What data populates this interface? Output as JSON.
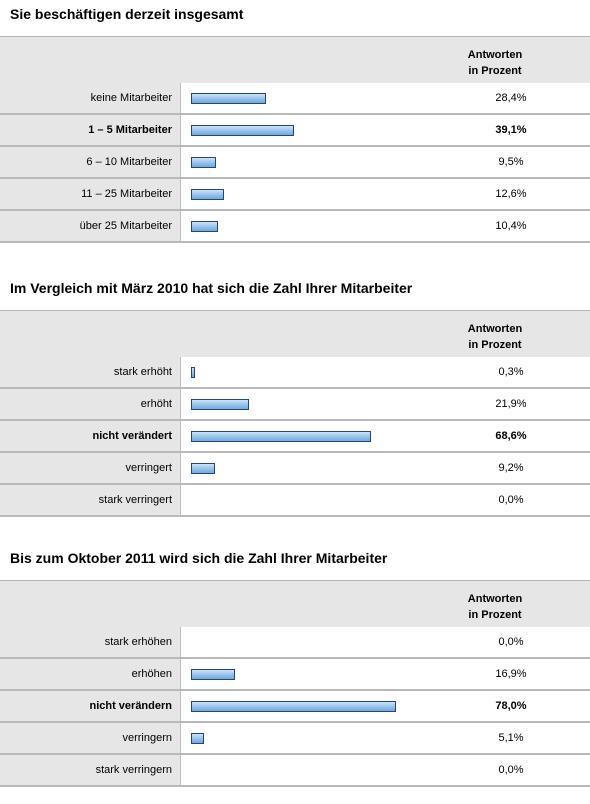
{
  "header": {
    "line1": "Antworten",
    "line2": "in Prozent"
  },
  "chart_data": [
    {
      "type": "bar",
      "title": "Sie beschäftigen derzeit insgesamt",
      "categories": [
        "keine Mitarbeiter",
        "1 – 5 Mitarbeiter",
        "6 – 10 Mitarbeiter",
        "11 – 25 Mitarbeiter",
        "über 25 Mitarbeiter"
      ],
      "values": [
        28.4,
        39.1,
        9.5,
        12.6,
        10.4
      ],
      "value_labels": [
        "28,4%",
        "39,1%",
        "9,5%",
        "12,6%",
        "10,4%"
      ],
      "highlight_index": 1,
      "xlim": [
        0,
        100
      ]
    },
    {
      "type": "bar",
      "title": "Im Vergleich mit März 2010 hat sich die Zahl Ihrer Mitarbeiter",
      "categories": [
        "stark erhöht",
        "erhöht",
        "nicht verändert",
        "verringert",
        "stark verringert"
      ],
      "values": [
        0.3,
        21.9,
        68.6,
        9.2,
        0.0
      ],
      "value_labels": [
        "0,3%",
        "21,9%",
        "68,6%",
        "9,2%",
        "0,0%"
      ],
      "highlight_index": 2,
      "xlim": [
        0,
        100
      ]
    },
    {
      "type": "bar",
      "title": "Bis zum Oktober 2011 wird sich die Zahl Ihrer Mitarbeiter",
      "categories": [
        "stark erhöhen",
        "erhöhen",
        "nicht verändern",
        "verringern",
        "stark verringern"
      ],
      "values": [
        0.0,
        16.9,
        78.0,
        5.1,
        0.0
      ],
      "value_labels": [
        "0,0%",
        "16,9%",
        "78,0%",
        "5,1%",
        "0,0%"
      ],
      "highlight_index": 2,
      "xlim": [
        0,
        100
      ]
    }
  ]
}
